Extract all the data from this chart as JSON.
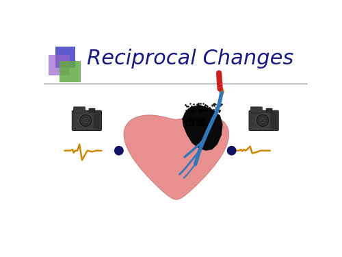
{
  "title": "Reciprocal Changes",
  "title_color": "#1a1a80",
  "title_fontsize": 22,
  "bg_color": "#ffffff",
  "square_blue": "#5b5bcc",
  "square_purple": "#9966cc",
  "square_green": "#66aa44",
  "line_color": "#666666",
  "heart_fill": "#e89090",
  "heart_edge": "#c07070",
  "infarct_fill": "#0a0a0a",
  "vessel_blue": "#3377bb",
  "vessel_red": "#cc2020",
  "vessel_orange": "#cc7700",
  "ecg_color": "#cc8800",
  "dot_color": "#111166",
  "camera_body": "#3a3a3a",
  "camera_dark": "#222222",
  "camera_mid": "#555555"
}
